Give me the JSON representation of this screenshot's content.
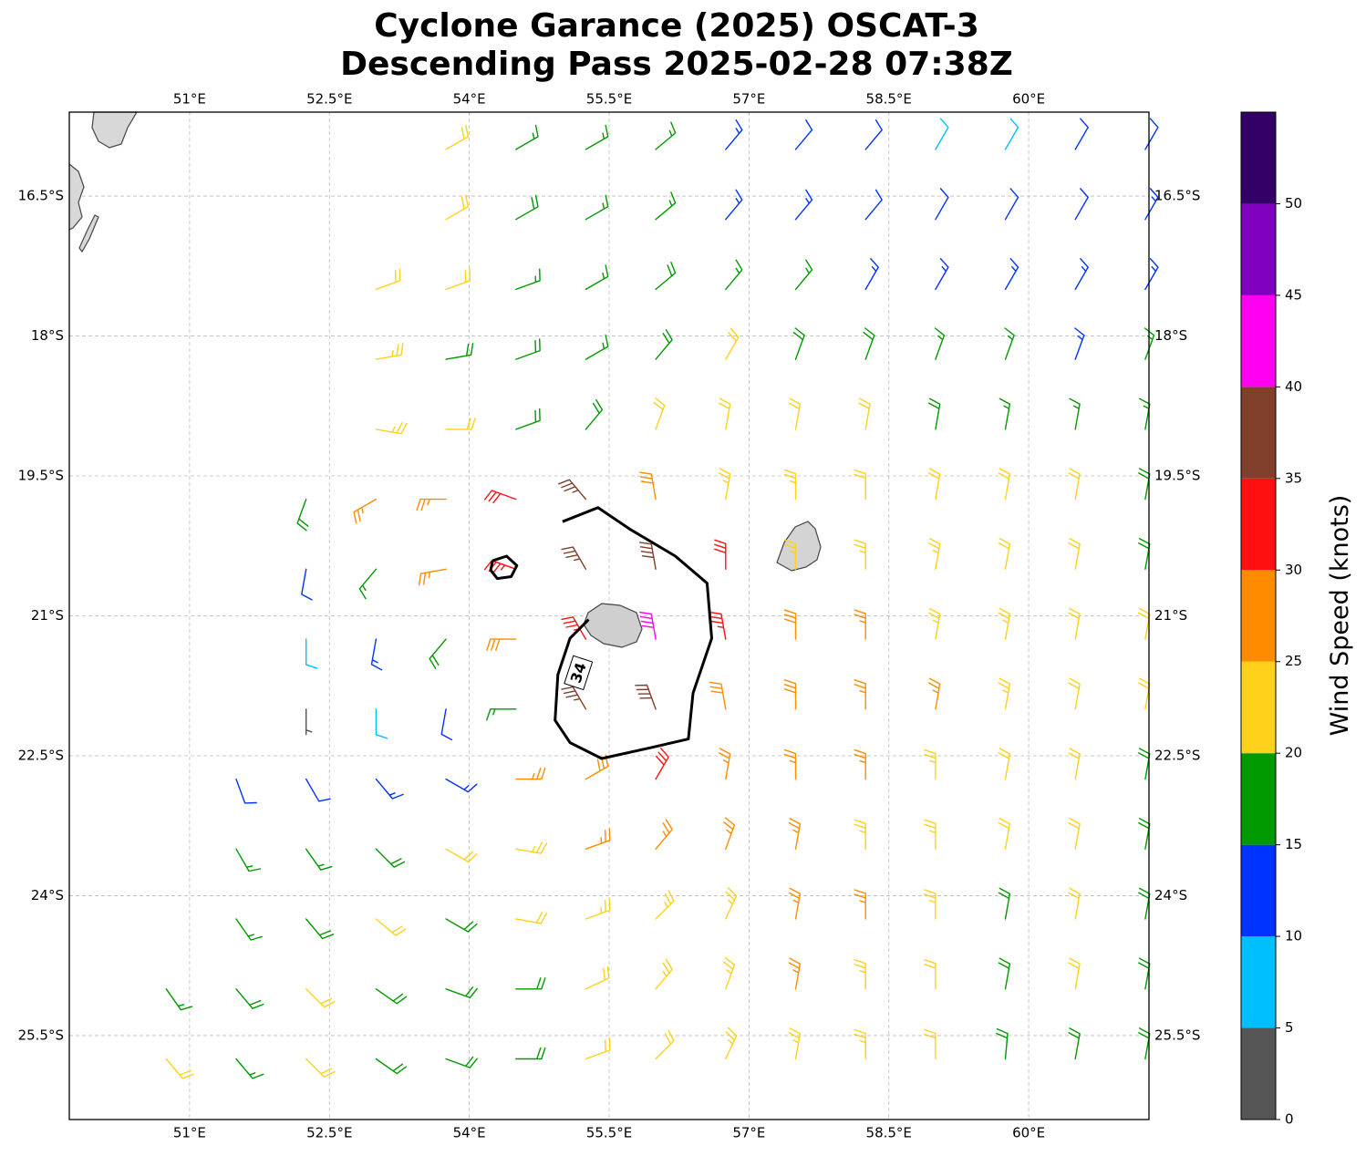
{
  "chart_data": {
    "type": "barbs",
    "title": [
      "Cyclone Garance (2025) OSCAT-3",
      "Descending Pass 2025-02-28 07:38Z"
    ],
    "xlim": [
      49.71,
      61.29
    ],
    "ylim": [
      -26.4,
      -15.6
    ],
    "xticks": [
      {
        "value": 51,
        "label": "51°E"
      },
      {
        "value": 52.5,
        "label": "52.5°E"
      },
      {
        "value": 54,
        "label": "54°E"
      },
      {
        "value": 55.5,
        "label": "55.5°E"
      },
      {
        "value": 57,
        "label": "57°E"
      },
      {
        "value": 58.5,
        "label": "58.5°E"
      },
      {
        "value": 60,
        "label": "60°E"
      }
    ],
    "yticks": [
      {
        "value": -16.5,
        "label": "16.5°S"
      },
      {
        "value": -18,
        "label": "18°S"
      },
      {
        "value": -19.5,
        "label": "19.5°S"
      },
      {
        "value": -21,
        "label": "21°S"
      },
      {
        "value": -22.5,
        "label": "22.5°S"
      },
      {
        "value": -24,
        "label": "24°S"
      },
      {
        "value": -25.5,
        "label": "25.5°S"
      }
    ],
    "grid": true,
    "barbs": {
      "lon": [
        50,
        50.75,
        51.5,
        52.25,
        53,
        53.75,
        54.5,
        55.25,
        56,
        56.75,
        57.5,
        58.25,
        59,
        59.75,
        60.5,
        61.25
      ],
      "lat": [
        -16,
        -16.75,
        -17.5,
        -18.25,
        -19,
        -19.75,
        -20.5,
        -21.25,
        -22,
        -22.75,
        -23.5,
        -24.25,
        -25,
        -25.75
      ],
      "speed": [
        [
          null,
          null,
          null,
          null,
          null,
          20,
          17,
          16,
          15,
          13,
          12,
          12,
          9,
          9,
          11,
          12
        ],
        [
          null,
          null,
          null,
          null,
          null,
          22,
          18,
          17,
          16,
          14,
          13,
          12,
          11,
          11,
          12,
          13
        ],
        [
          null,
          null,
          null,
          null,
          22,
          21,
          17,
          17,
          18,
          17,
          16,
          14,
          14,
          13,
          14,
          13
        ],
        [
          null,
          null,
          null,
          null,
          24,
          19,
          18,
          17,
          18,
          21,
          19,
          18,
          16,
          16,
          14,
          15
        ],
        [
          null,
          null,
          null,
          null,
          23,
          21,
          19,
          19,
          21,
          22,
          21,
          20,
          18,
          17,
          17,
          17
        ],
        [
          null,
          null,
          null,
          18,
          26,
          27,
          31,
          36,
          28,
          24,
          23,
          22,
          21,
          21,
          20,
          19
        ],
        [
          null,
          null,
          null,
          12,
          17,
          27,
          33,
          37,
          38,
          31,
          23,
          24,
          23,
          22,
          20,
          19
        ],
        [
          null,
          null,
          null,
          8,
          13,
          18,
          28,
          33,
          42,
          33,
          28,
          27,
          24,
          23,
          22,
          20
        ],
        [
          null,
          null,
          null,
          4,
          8,
          12,
          16,
          37,
          38,
          29,
          28,
          27,
          25,
          23,
          22,
          20
        ],
        [
          null,
          null,
          11,
          12,
          13,
          14,
          27,
          29,
          32,
          27,
          26,
          25,
          23,
          22,
          21,
          19
        ],
        [
          null,
          null,
          16,
          17,
          18,
          21,
          23,
          26,
          27,
          25,
          26,
          24,
          23,
          20,
          21,
          19
        ],
        [
          null,
          null,
          17,
          19,
          21,
          19,
          20,
          23,
          24,
          24,
          26,
          26,
          23,
          19,
          21,
          18
        ],
        [
          null,
          17,
          18,
          21,
          19,
          18,
          19,
          22,
          23,
          24,
          26,
          24,
          22,
          19,
          21,
          18
        ],
        [
          null,
          21,
          17,
          21,
          18,
          18,
          19,
          20,
          22,
          23,
          24,
          23,
          22,
          19,
          18,
          18
        ]
      ],
      "dir": [
        [
          null,
          null,
          null,
          null,
          null,
          60,
          60,
          60,
          50,
          40,
          40,
          40,
          30,
          30,
          30,
          30
        ],
        [
          null,
          null,
          null,
          null,
          null,
          60,
          60,
          60,
          50,
          40,
          40,
          40,
          30,
          30,
          30,
          30
        ],
        [
          null,
          null,
          null,
          null,
          70,
          70,
          70,
          60,
          50,
          40,
          40,
          30,
          30,
          30,
          30,
          30
        ],
        [
          null,
          null,
          null,
          null,
          80,
          80,
          70,
          60,
          40,
          30,
          20,
          20,
          20,
          20,
          20,
          20
        ],
        [
          null,
          null,
          null,
          null,
          100,
          90,
          70,
          40,
          20,
          10,
          10,
          10,
          10,
          10,
          10,
          10
        ],
        [
          null,
          null,
          null,
          200,
          240,
          270,
          290,
          320,
          350,
          10,
          0,
          0,
          10,
          10,
          10,
          10
        ],
        [
          null,
          null,
          null,
          190,
          220,
          260,
          290,
          330,
          350,
          0,
          0,
          0,
          10,
          10,
          10,
          10
        ],
        [
          null,
          null,
          null,
          180,
          190,
          220,
          270,
          330,
          350,
          350,
          0,
          0,
          10,
          10,
          10,
          10
        ],
        [
          null,
          null,
          null,
          180,
          180,
          190,
          270,
          330,
          340,
          350,
          0,
          0,
          10,
          10,
          10,
          10
        ],
        [
          null,
          null,
          160,
          150,
          140,
          120,
          90,
          60,
          30,
          10,
          0,
          0,
          0,
          10,
          10,
          10
        ],
        [
          null,
          null,
          150,
          145,
          135,
          120,
          100,
          70,
          40,
          20,
          10,
          0,
          0,
          10,
          10,
          10
        ],
        [
          null,
          null,
          145,
          140,
          130,
          120,
          100,
          70,
          45,
          25,
          10,
          0,
          0,
          10,
          10,
          10
        ],
        [
          null,
          145,
          140,
          135,
          125,
          110,
          90,
          65,
          40,
          20,
          10,
          0,
          0,
          10,
          10,
          10
        ],
        [
          null,
          140,
          140,
          135,
          125,
          110,
          90,
          70,
          45,
          25,
          10,
          0,
          0,
          5,
          10,
          10
        ]
      ]
    },
    "contour_level": 34,
    "contour_label_at": [
      55.17,
      -21.61
    ],
    "contours": [
      {
        "lon": [
          55.0,
          55.38,
          55.72,
          56.21,
          56.55,
          56.6,
          56.4,
          56.35,
          55.96,
          55.42,
          55.08,
          54.92,
          54.95,
          55.08,
          55.28
        ],
        "lat": [
          -19.99,
          -19.84,
          -20.07,
          -20.36,
          -20.65,
          -21.24,
          -21.83,
          -22.32,
          -22.41,
          -22.53,
          -22.36,
          -22.12,
          -21.63,
          -21.24,
          -21.04
        ]
      },
      {
        "lon": [
          54.25,
          54.4,
          54.51,
          54.45,
          54.3,
          54.23,
          54.25
        ],
        "lat": [
          -20.41,
          -20.36,
          -20.46,
          -20.58,
          -20.6,
          -20.51,
          -20.41
        ]
      }
    ],
    "colorbar": {
      "label": "Wind Speed (knots)",
      "clim": [
        0,
        55
      ],
      "ticks": [
        0,
        5,
        10,
        15,
        20,
        25,
        30,
        35,
        40,
        45,
        50
      ],
      "colors": [
        "#555555",
        "#00bfff",
        "#0033ff",
        "#009900",
        "#ffd11a",
        "#ff8c00",
        "#ff1010",
        "#7f3f2a",
        "#ff00f0",
        "#8000bf",
        "#330066"
      ]
    }
  }
}
